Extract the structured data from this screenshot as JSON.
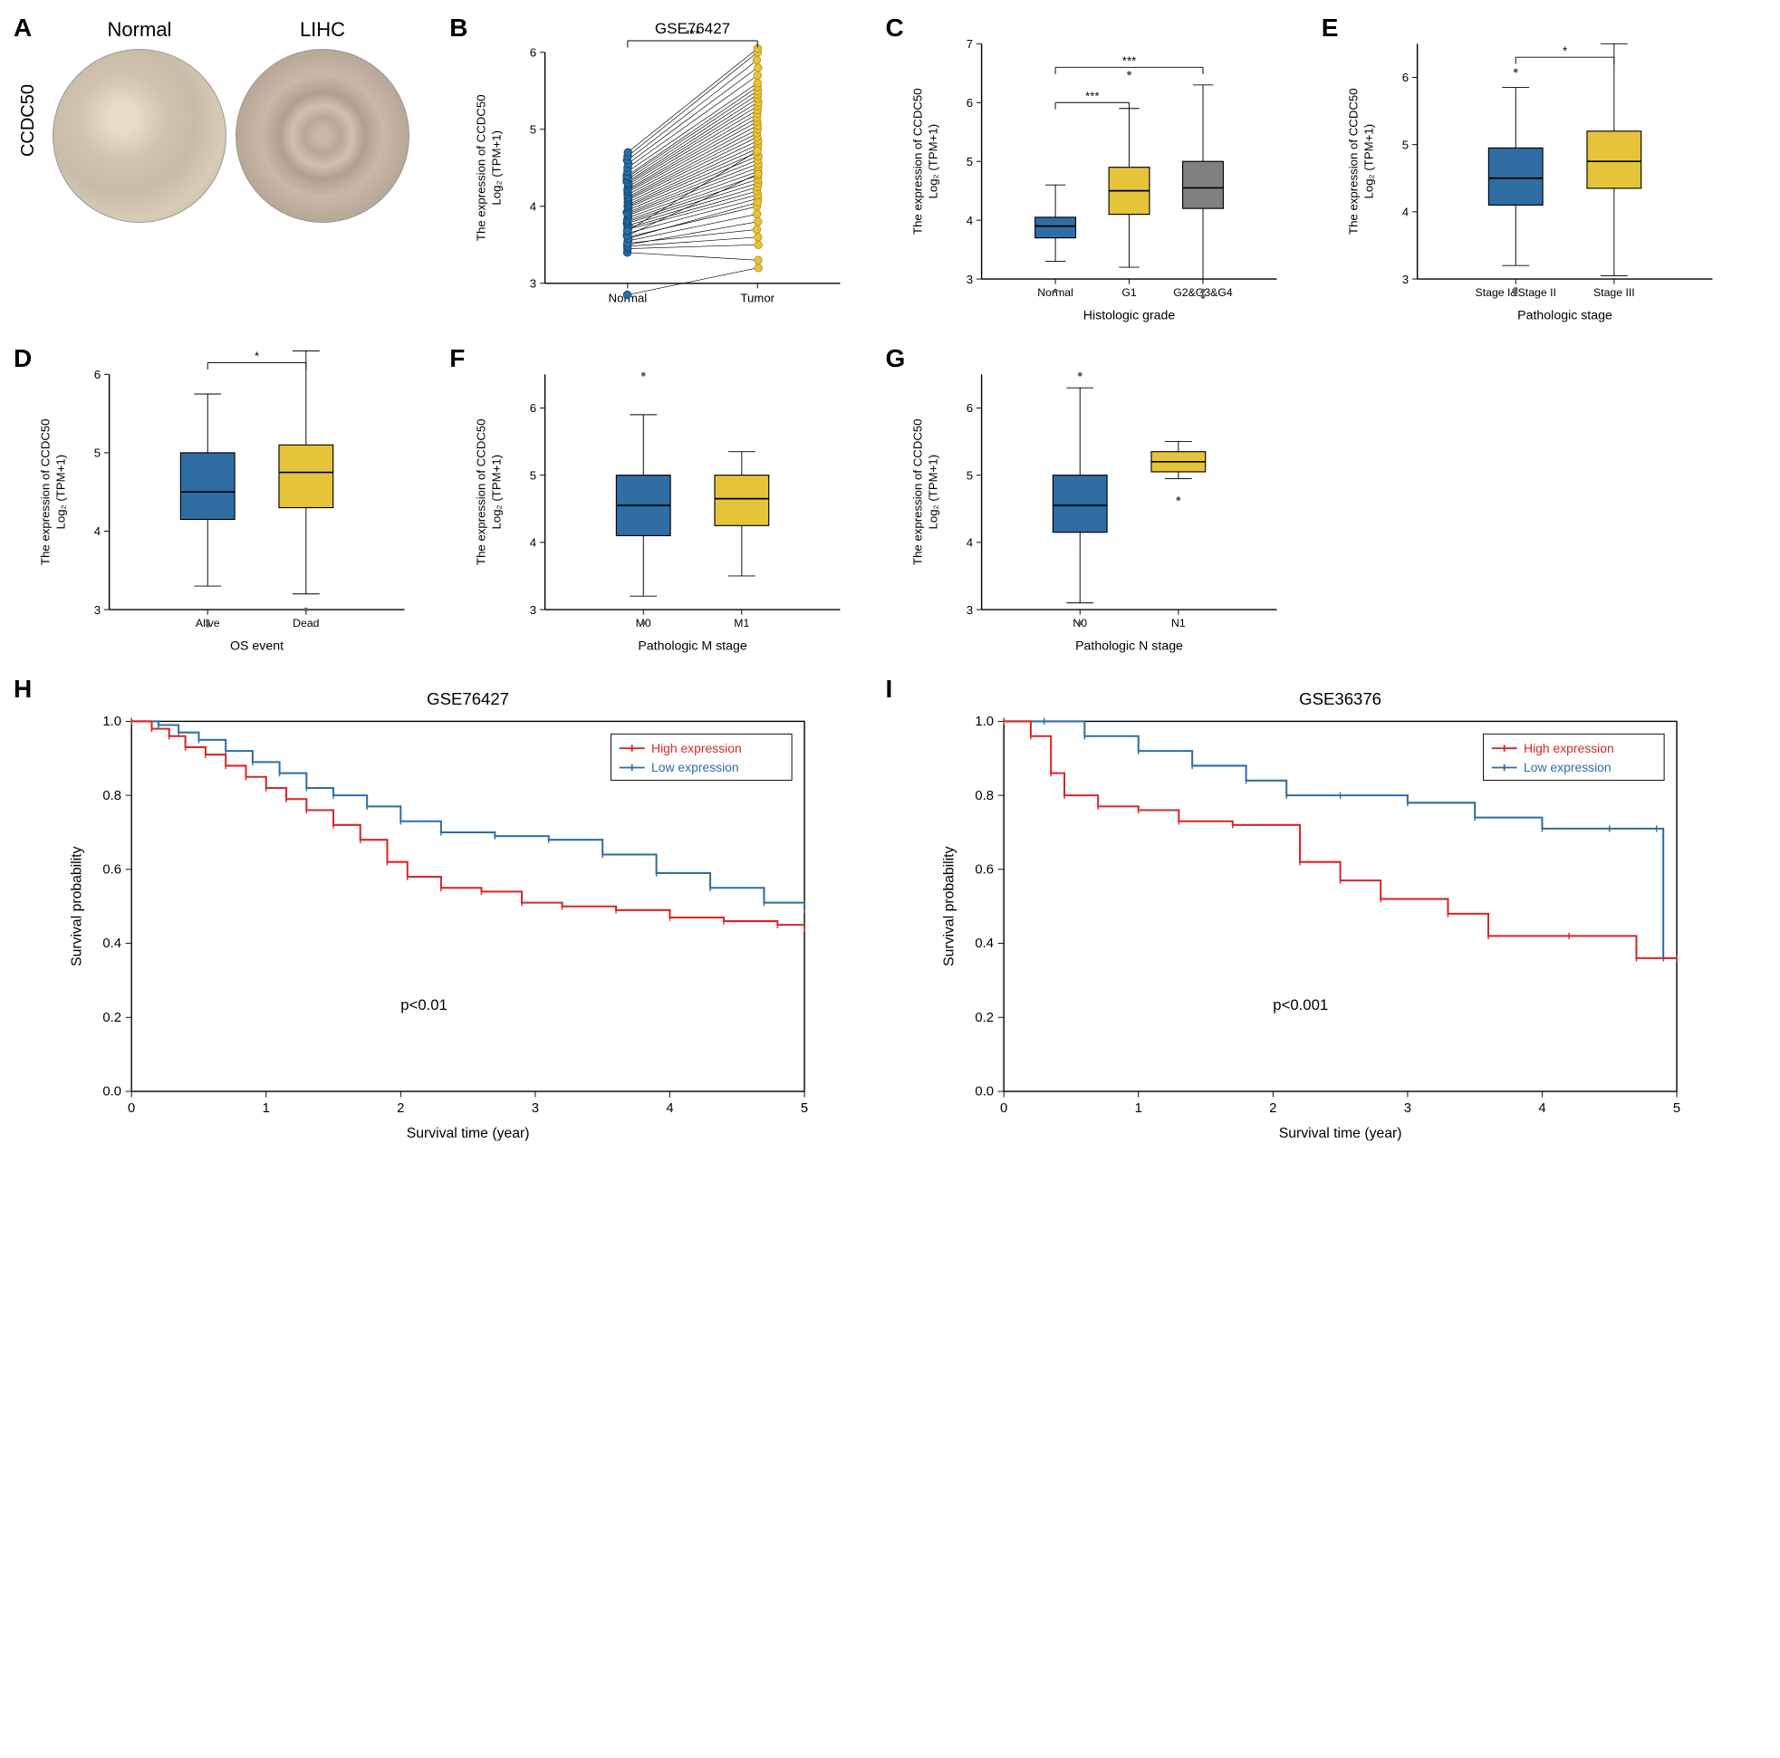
{
  "gene": "CCDC50",
  "panelA": {
    "label": "A",
    "normal_title": "Normal",
    "lihc_title": "LIHC"
  },
  "panelB": {
    "label": "B",
    "title": "GSE76427",
    "ylabel": "The expression of CCDC50\nLog₂ (TPM+1)",
    "xticks": [
      "Normal",
      "Tumor"
    ],
    "ylim": [
      3,
      6
    ],
    "yticks": [
      3,
      4,
      5,
      6
    ],
    "normal_color": "#2f6da3",
    "normal_stroke": "#144a73",
    "tumor_color": "#e5c43a",
    "tumor_stroke": "#b89820",
    "sig": "***",
    "sig_y": 6.15,
    "normal_points": [
      3.5,
      3.55,
      3.6,
      3.65,
      3.7,
      3.72,
      3.75,
      3.78,
      3.8,
      3.82,
      3.85,
      3.88,
      3.9,
      3.92,
      3.95,
      3.98,
      4.0,
      4.02,
      4.05,
      4.08,
      4.1,
      4.12,
      4.15,
      4.18,
      4.2,
      4.22,
      4.25,
      4.28,
      4.3,
      4.32,
      4.35,
      4.38,
      4.4,
      4.45,
      4.5,
      4.55,
      4.6,
      4.65,
      4.7,
      2.85,
      3.4,
      3.45,
      3.48,
      3.52,
      3.58,
      3.62,
      3.68
    ],
    "tumor_points": [
      3.8,
      3.9,
      4.0,
      4.1,
      4.15,
      4.2,
      4.25,
      4.3,
      4.35,
      4.4,
      4.45,
      4.5,
      4.55,
      4.6,
      4.65,
      4.7,
      4.75,
      4.8,
      4.85,
      4.9,
      4.95,
      5.0,
      5.05,
      5.1,
      5.15,
      5.2,
      5.25,
      5.3,
      5.35,
      5.4,
      5.45,
      5.5,
      5.55,
      5.6,
      5.7,
      5.8,
      5.9,
      6.0,
      6.05,
      3.2,
      3.3,
      3.5,
      3.6,
      3.7,
      4.05,
      4.42,
      4.72
    ]
  },
  "panelC": {
    "label": "C",
    "ylabel": "The expression of CCDC50\nLog₂ (TPM+1)",
    "xlabel": "Histologic grade",
    "xticks": [
      "Normal",
      "G1",
      "G2&G3&G4"
    ],
    "ylim": [
      3,
      7
    ],
    "yticks": [
      3,
      4,
      5,
      6,
      7
    ],
    "boxes": [
      {
        "q1": 3.7,
        "med": 3.9,
        "q3": 4.05,
        "wlo": 3.3,
        "whi": 4.6,
        "color": "#2f6da3"
      },
      {
        "q1": 4.1,
        "med": 4.5,
        "q3": 4.9,
        "wlo": 3.2,
        "whi": 5.9,
        "color": "#e5c43a"
      },
      {
        "q1": 4.2,
        "med": 4.55,
        "q3": 5.0,
        "wlo": 3.0,
        "whi": 6.3,
        "color": "#808080"
      }
    ],
    "outliers": [
      [
        2.8,
        0
      ],
      [
        6.5,
        1
      ],
      [
        2.8,
        2
      ],
      [
        2.7,
        2
      ]
    ],
    "sigs": [
      {
        "from": 0,
        "to": 1,
        "y": 6.0,
        "text": "***"
      },
      {
        "from": 0,
        "to": 2,
        "y": 6.6,
        "text": "***"
      }
    ]
  },
  "panelD": {
    "label": "D",
    "ylabel": "The expression of CCDC50\nLog₂ (TPM+1)",
    "xlabel": "OS event",
    "xticks": [
      "Alive",
      "Dead"
    ],
    "ylim": [
      3,
      6
    ],
    "yticks": [
      3,
      4,
      5,
      6
    ],
    "boxes": [
      {
        "q1": 4.15,
        "med": 4.5,
        "q3": 5.0,
        "wlo": 3.3,
        "whi": 5.75,
        "color": "#2f6da3"
      },
      {
        "q1": 4.3,
        "med": 4.75,
        "q3": 5.1,
        "wlo": 3.2,
        "whi": 6.3,
        "color": "#e5c43a"
      }
    ],
    "outliers": [
      [
        2.8,
        0
      ],
      [
        2.85,
        0
      ],
      [
        3.0,
        1
      ]
    ],
    "sigs": [
      {
        "from": 0,
        "to": 1,
        "y": 6.15,
        "text": "*"
      }
    ]
  },
  "panelE": {
    "label": "E",
    "ylabel": "The expression of CCDC50\nLog₂ (TPM+1)",
    "xlabel": "Pathologic stage",
    "xticks": [
      "Stage I&Stage II",
      "Stage III"
    ],
    "ylim": [
      3,
      6.5
    ],
    "yticks": [
      3,
      4,
      5,
      6
    ],
    "boxes": [
      {
        "q1": 4.1,
        "med": 4.5,
        "q3": 4.95,
        "wlo": 3.2,
        "whi": 5.85,
        "color": "#2f6da3"
      },
      {
        "q1": 4.35,
        "med": 4.75,
        "q3": 5.2,
        "wlo": 3.05,
        "whi": 6.5,
        "color": "#e5c43a"
      }
    ],
    "outliers": [
      [
        2.8,
        0
      ],
      [
        2.85,
        0
      ],
      [
        6.1,
        0
      ]
    ],
    "sigs": [
      {
        "from": 0,
        "to": 1,
        "y": 6.3,
        "text": "*"
      }
    ]
  },
  "panelF": {
    "label": "F",
    "ylabel": "The expression of CCDC50\nLog₂ (TPM+1)",
    "xlabel": "Pathologic M stage",
    "xticks": [
      "M0",
      "M1"
    ],
    "ylim": [
      3,
      6.5
    ],
    "yticks": [
      3,
      4,
      5,
      6
    ],
    "boxes": [
      {
        "q1": 4.1,
        "med": 4.55,
        "q3": 5.0,
        "wlo": 3.2,
        "whi": 5.9,
        "color": "#2f6da3"
      },
      {
        "q1": 4.25,
        "med": 4.65,
        "q3": 5.0,
        "wlo": 3.5,
        "whi": 5.35,
        "color": "#e5c43a"
      }
    ],
    "outliers": [
      [
        2.8,
        0
      ],
      [
        6.5,
        0
      ]
    ],
    "sigs": []
  },
  "panelG": {
    "label": "G",
    "ylabel": "The expression of CCDC50\nLog₂ (TPM+1)",
    "xlabel": "Pathologic N stage",
    "xticks": [
      "N0",
      "N1"
    ],
    "ylim": [
      3,
      6.5
    ],
    "yticks": [
      3,
      4,
      5,
      6
    ],
    "boxes": [
      {
        "q1": 4.15,
        "med": 4.55,
        "q3": 5.0,
        "wlo": 3.1,
        "whi": 6.3,
        "color": "#2f6da3"
      },
      {
        "q1": 5.05,
        "med": 5.2,
        "q3": 5.35,
        "wlo": 4.95,
        "whi": 5.5,
        "color": "#e5c43a"
      }
    ],
    "outliers": [
      [
        2.8,
        0
      ],
      [
        6.5,
        0
      ],
      [
        4.65,
        1
      ]
    ],
    "sigs": []
  },
  "panelH": {
    "label": "H",
    "title": "GSE76427",
    "ylabel": "Survival probability",
    "xlabel": "Survival time (year)",
    "xlim": [
      0,
      5
    ],
    "ylim": [
      0,
      1
    ],
    "yticks": [
      0,
      0.2,
      0.4,
      0.6,
      0.8,
      1.0
    ],
    "xticks": [
      0,
      1,
      2,
      3,
      4,
      5
    ],
    "ptext": "p<0.01",
    "legend": {
      "high": "High expression",
      "low": "Low expression",
      "high_color": "#d62728",
      "low_color": "#2f6da3"
    },
    "high": [
      [
        0,
        1.0
      ],
      [
        0.15,
        0.98
      ],
      [
        0.28,
        0.96
      ],
      [
        0.4,
        0.93
      ],
      [
        0.55,
        0.91
      ],
      [
        0.7,
        0.88
      ],
      [
        0.85,
        0.85
      ],
      [
        1.0,
        0.82
      ],
      [
        1.15,
        0.79
      ],
      [
        1.3,
        0.76
      ],
      [
        1.5,
        0.72
      ],
      [
        1.7,
        0.68
      ],
      [
        1.9,
        0.62
      ],
      [
        2.05,
        0.58
      ],
      [
        2.3,
        0.55
      ],
      [
        2.6,
        0.54
      ],
      [
        2.9,
        0.51
      ],
      [
        3.2,
        0.5
      ],
      [
        3.6,
        0.49
      ],
      [
        4.0,
        0.47
      ],
      [
        4.4,
        0.46
      ],
      [
        4.8,
        0.45
      ],
      [
        5.0,
        0.44
      ]
    ],
    "low": [
      [
        0,
        1.0
      ],
      [
        0.2,
        0.99
      ],
      [
        0.35,
        0.97
      ],
      [
        0.5,
        0.95
      ],
      [
        0.7,
        0.92
      ],
      [
        0.9,
        0.89
      ],
      [
        1.1,
        0.86
      ],
      [
        1.3,
        0.82
      ],
      [
        1.5,
        0.8
      ],
      [
        1.75,
        0.77
      ],
      [
        2.0,
        0.73
      ],
      [
        2.3,
        0.7
      ],
      [
        2.7,
        0.69
      ],
      [
        3.1,
        0.68
      ],
      [
        3.5,
        0.64
      ],
      [
        3.9,
        0.59
      ],
      [
        4.3,
        0.55
      ],
      [
        4.7,
        0.51
      ],
      [
        5.0,
        0.49
      ]
    ]
  },
  "panelI": {
    "label": "I",
    "title": "GSE36376",
    "ylabel": "Survival probability",
    "xlabel": "Survival time (year)",
    "xlim": [
      0,
      5
    ],
    "ylim": [
      0,
      1
    ],
    "yticks": [
      0,
      0.2,
      0.4,
      0.6,
      0.8,
      1.0
    ],
    "xticks": [
      0,
      1,
      2,
      3,
      4,
      5
    ],
    "ptext": "p<0.001",
    "legend": {
      "high": "High expression",
      "low": "Low expression",
      "high_color": "#d62728",
      "low_color": "#2f6da3"
    },
    "high": [
      [
        0,
        1.0
      ],
      [
        0.2,
        0.96
      ],
      [
        0.35,
        0.86
      ],
      [
        0.45,
        0.8
      ],
      [
        0.7,
        0.77
      ],
      [
        1.0,
        0.76
      ],
      [
        1.3,
        0.73
      ],
      [
        1.7,
        0.72
      ],
      [
        2.2,
        0.62
      ],
      [
        2.5,
        0.57
      ],
      [
        2.8,
        0.52
      ],
      [
        3.3,
        0.48
      ],
      [
        3.6,
        0.42
      ],
      [
        4.2,
        0.42
      ],
      [
        4.7,
        0.36
      ],
      [
        5.0,
        0.36
      ]
    ],
    "low": [
      [
        0,
        1.0
      ],
      [
        0.3,
        1.0
      ],
      [
        0.6,
        0.96
      ],
      [
        1.0,
        0.92
      ],
      [
        1.4,
        0.88
      ],
      [
        1.8,
        0.84
      ],
      [
        2.1,
        0.8
      ],
      [
        2.5,
        0.8
      ],
      [
        3.0,
        0.78
      ],
      [
        3.5,
        0.74
      ],
      [
        4.0,
        0.71
      ],
      [
        4.5,
        0.71
      ],
      [
        4.85,
        0.71
      ],
      [
        4.9,
        0.36
      ],
      [
        5.0,
        0.36
      ]
    ]
  },
  "styles": {
    "axis_color": "#000000",
    "tick_len": 6,
    "font_size_label": 16,
    "font_size_tick": 14,
    "font_size_title": 18
  }
}
